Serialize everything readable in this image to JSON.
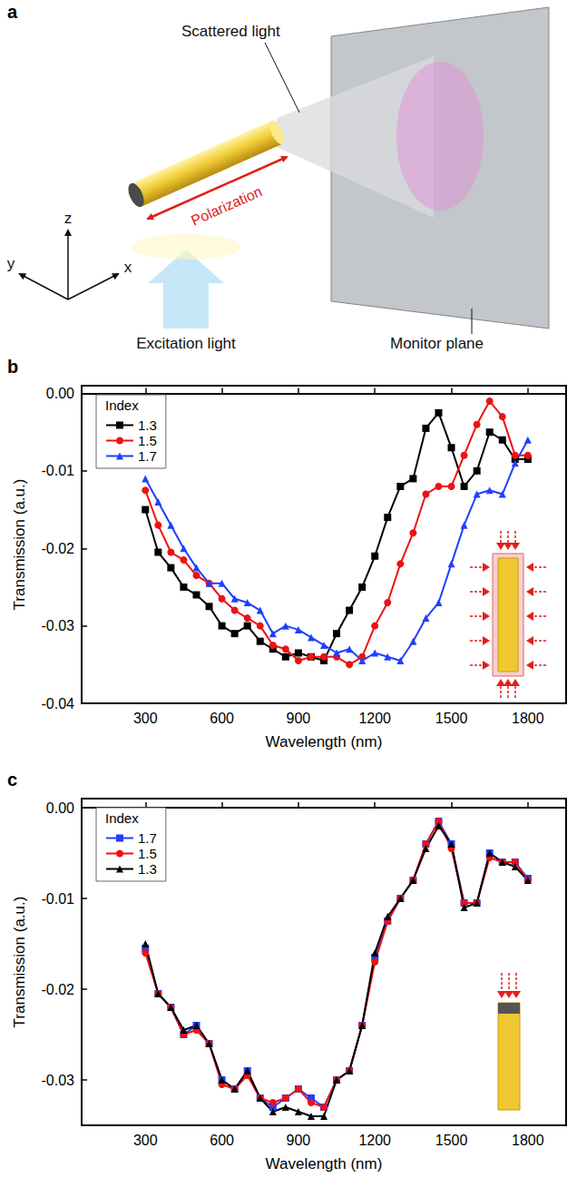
{
  "diagram": {
    "panel": "a",
    "labels": {
      "scattered": "Scattered light",
      "polarization": "Polarization",
      "monitor": "Monitor plane",
      "excitation": "Excitation light"
    },
    "axes": {
      "z": "z",
      "y": "y",
      "x": "x"
    }
  },
  "chart_data": [
    {
      "panel": "b",
      "type": "line",
      "xlabel": "Wavelength (nm)",
      "ylabel": "Transmission (a.u.)",
      "legend_title": "Index",
      "legend": "upper left",
      "grid": false,
      "xlim": [
        50,
        1950
      ],
      "xticks": [
        300,
        600,
        900,
        1200,
        1500,
        1800
      ],
      "ylim": [
        -0.04,
        0.001
      ],
      "yticks": [
        {
          "value": -0.04,
          "label": "-0.04"
        },
        {
          "value": -0.03,
          "label": "-0.03"
        },
        {
          "value": -0.02,
          "label": "-0.02"
        },
        {
          "value": -0.01,
          "label": "-0.01"
        },
        {
          "value": 0,
          "label": "0.00"
        }
      ],
      "x": [
        300,
        350,
        400,
        450,
        500,
        550,
        600,
        650,
        700,
        750,
        800,
        850,
        900,
        950,
        1000,
        1050,
        1100,
        1150,
        1200,
        1250,
        1300,
        1350,
        1400,
        1450,
        1500,
        1550,
        1600,
        1650,
        1700,
        1750,
        1800
      ],
      "series": [
        {
          "name": "1.3",
          "color": "#000000",
          "marker": "square",
          "values": [
            -0.015,
            -0.0205,
            -0.0225,
            -0.025,
            -0.026,
            -0.0275,
            -0.03,
            -0.031,
            -0.03,
            -0.032,
            -0.033,
            -0.034,
            -0.0335,
            -0.034,
            -0.0345,
            -0.031,
            -0.028,
            -0.025,
            -0.021,
            -0.016,
            -0.012,
            -0.011,
            -0.0045,
            -0.0025,
            -0.007,
            -0.012,
            -0.01,
            -0.005,
            -0.006,
            -0.0085,
            -0.0085
          ]
        },
        {
          "name": "1.5",
          "color": "#ee1111",
          "marker": "circle",
          "values": [
            -0.0125,
            -0.017,
            -0.0205,
            -0.0215,
            -0.0235,
            -0.0245,
            -0.0265,
            -0.028,
            -0.029,
            -0.03,
            -0.0325,
            -0.033,
            -0.0345,
            -0.034,
            -0.034,
            -0.034,
            -0.035,
            -0.034,
            -0.03,
            -0.027,
            -0.022,
            -0.018,
            -0.013,
            -0.012,
            -0.012,
            -0.008,
            -0.004,
            -0.001,
            -0.003,
            -0.008,
            -0.008
          ]
        },
        {
          "name": "1.7",
          "color": "#1f3fff",
          "marker": "triangle",
          "values": [
            -0.011,
            -0.014,
            -0.017,
            -0.02,
            -0.0225,
            -0.0245,
            -0.0245,
            -0.0265,
            -0.027,
            -0.028,
            -0.031,
            -0.03,
            -0.0305,
            -0.0315,
            -0.0325,
            -0.0335,
            -0.033,
            -0.0345,
            -0.0335,
            -0.034,
            -0.0345,
            -0.032,
            -0.029,
            -0.027,
            -0.022,
            -0.017,
            -0.013,
            -0.0125,
            -0.013,
            -0.009,
            -0.006
          ]
        }
      ]
    },
    {
      "panel": "c",
      "type": "line",
      "xlabel": "Wavelength (nm)",
      "ylabel": "Transmission (a.u.)",
      "legend_title": "Index",
      "legend": "upper left",
      "grid": false,
      "xlim": [
        50,
        1950
      ],
      "xticks": [
        300,
        600,
        900,
        1200,
        1500,
        1800
      ],
      "ylim": [
        -0.035,
        0.001
      ],
      "yticks": [
        {
          "value": -0.03,
          "label": "-0.03"
        },
        {
          "value": -0.02,
          "label": "-0.02"
        },
        {
          "value": -0.01,
          "label": "-0.01"
        },
        {
          "value": 0,
          "label": "0.00"
        }
      ],
      "x": [
        300,
        350,
        400,
        450,
        500,
        550,
        600,
        650,
        700,
        750,
        800,
        850,
        900,
        950,
        1000,
        1050,
        1100,
        1150,
        1200,
        1250,
        1300,
        1350,
        1400,
        1450,
        1500,
        1550,
        1600,
        1650,
        1700,
        1750,
        1800
      ],
      "series": [
        {
          "name": "1.7",
          "color": "#1f3fff",
          "marker": "square",
          "values": [
            -0.0155,
            -0.0205,
            -0.022,
            -0.025,
            -0.024,
            -0.026,
            -0.03,
            -0.031,
            -0.029,
            -0.032,
            -0.033,
            -0.032,
            -0.031,
            -0.032,
            -0.033,
            -0.03,
            -0.029,
            -0.024,
            -0.0165,
            -0.0125,
            -0.01,
            -0.008,
            -0.004,
            -0.0015,
            -0.004,
            -0.0105,
            -0.0105,
            -0.005,
            -0.006,
            -0.006,
            -0.0078
          ]
        },
        {
          "name": "1.5",
          "color": "#ee1111",
          "marker": "circle",
          "values": [
            -0.016,
            -0.0205,
            -0.022,
            -0.025,
            -0.0245,
            -0.026,
            -0.0305,
            -0.031,
            -0.0295,
            -0.032,
            -0.0325,
            -0.032,
            -0.031,
            -0.0325,
            -0.033,
            -0.03,
            -0.029,
            -0.024,
            -0.017,
            -0.0125,
            -0.01,
            -0.008,
            -0.004,
            -0.0015,
            -0.0045,
            -0.0105,
            -0.0105,
            -0.0055,
            -0.006,
            -0.006,
            -0.008
          ]
        },
        {
          "name": "1.3",
          "color": "#000000",
          "marker": "triangle",
          "values": [
            -0.015,
            -0.0205,
            -0.022,
            -0.0245,
            -0.024,
            -0.026,
            -0.03,
            -0.031,
            -0.029,
            -0.032,
            -0.0335,
            -0.033,
            -0.0335,
            -0.034,
            -0.034,
            -0.03,
            -0.029,
            -0.024,
            -0.016,
            -0.012,
            -0.01,
            -0.008,
            -0.0045,
            -0.002,
            -0.004,
            -0.011,
            -0.0105,
            -0.005,
            -0.006,
            -0.0065,
            -0.008
          ]
        }
      ]
    }
  ]
}
